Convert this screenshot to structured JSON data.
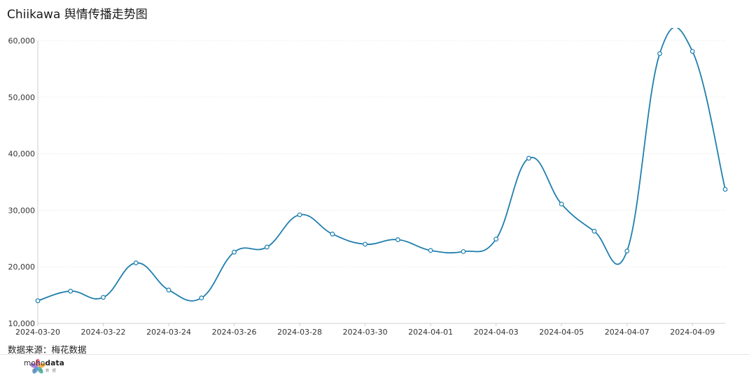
{
  "title": "Chiikawa 舆情传播走势图",
  "source": "数据来源：梅花数据",
  "brand": {
    "name_light": "moho",
    "name_bold": "data",
    "subtitle": "梅 花 数 据"
  },
  "colors": {
    "line": "#1f7fae",
    "grid": "#ececec",
    "axis": "#cfcfcf"
  },
  "chart_data": {
    "type": "line",
    "title": "Chiikawa 舆情传播走势图",
    "x": [
      "2024-03-20",
      "2024-03-21",
      "2024-03-22",
      "2024-03-23",
      "2024-03-24",
      "2024-03-25",
      "2024-03-26",
      "2024-03-27",
      "2024-03-28",
      "2024-03-29",
      "2024-03-30",
      "2024-03-31",
      "2024-04-01",
      "2024-04-02",
      "2024-04-03",
      "2024-04-04",
      "2024-04-05",
      "2024-04-06",
      "2024-04-07",
      "2024-04-08",
      "2024-04-09",
      "2024-04-10"
    ],
    "x_tick_labels": [
      "2024-03-20",
      "2024-03-22",
      "2024-03-24",
      "2024-03-26",
      "2024-03-28",
      "2024-03-30",
      "2024-04-01",
      "2024-04-03",
      "2024-04-05",
      "2024-04-07",
      "2024-04-09"
    ],
    "series": [
      {
        "values": [
          14000,
          15700,
          14600,
          20700,
          15900,
          14500,
          22600,
          23500,
          29200,
          25800,
          24000,
          24800,
          22900,
          22700,
          24900,
          39200,
          31100,
          26300,
          22800,
          57700,
          58100,
          33700
        ]
      }
    ],
    "ylim": [
      10000,
      60000
    ],
    "y_ticks": [
      10000,
      20000,
      30000,
      40000,
      50000,
      60000
    ],
    "y_tick_labels": [
      "10,000",
      "20,000",
      "30,000",
      "40,000",
      "50,000",
      "60,000"
    ],
    "grid": true,
    "xlabel": "",
    "ylabel": ""
  }
}
